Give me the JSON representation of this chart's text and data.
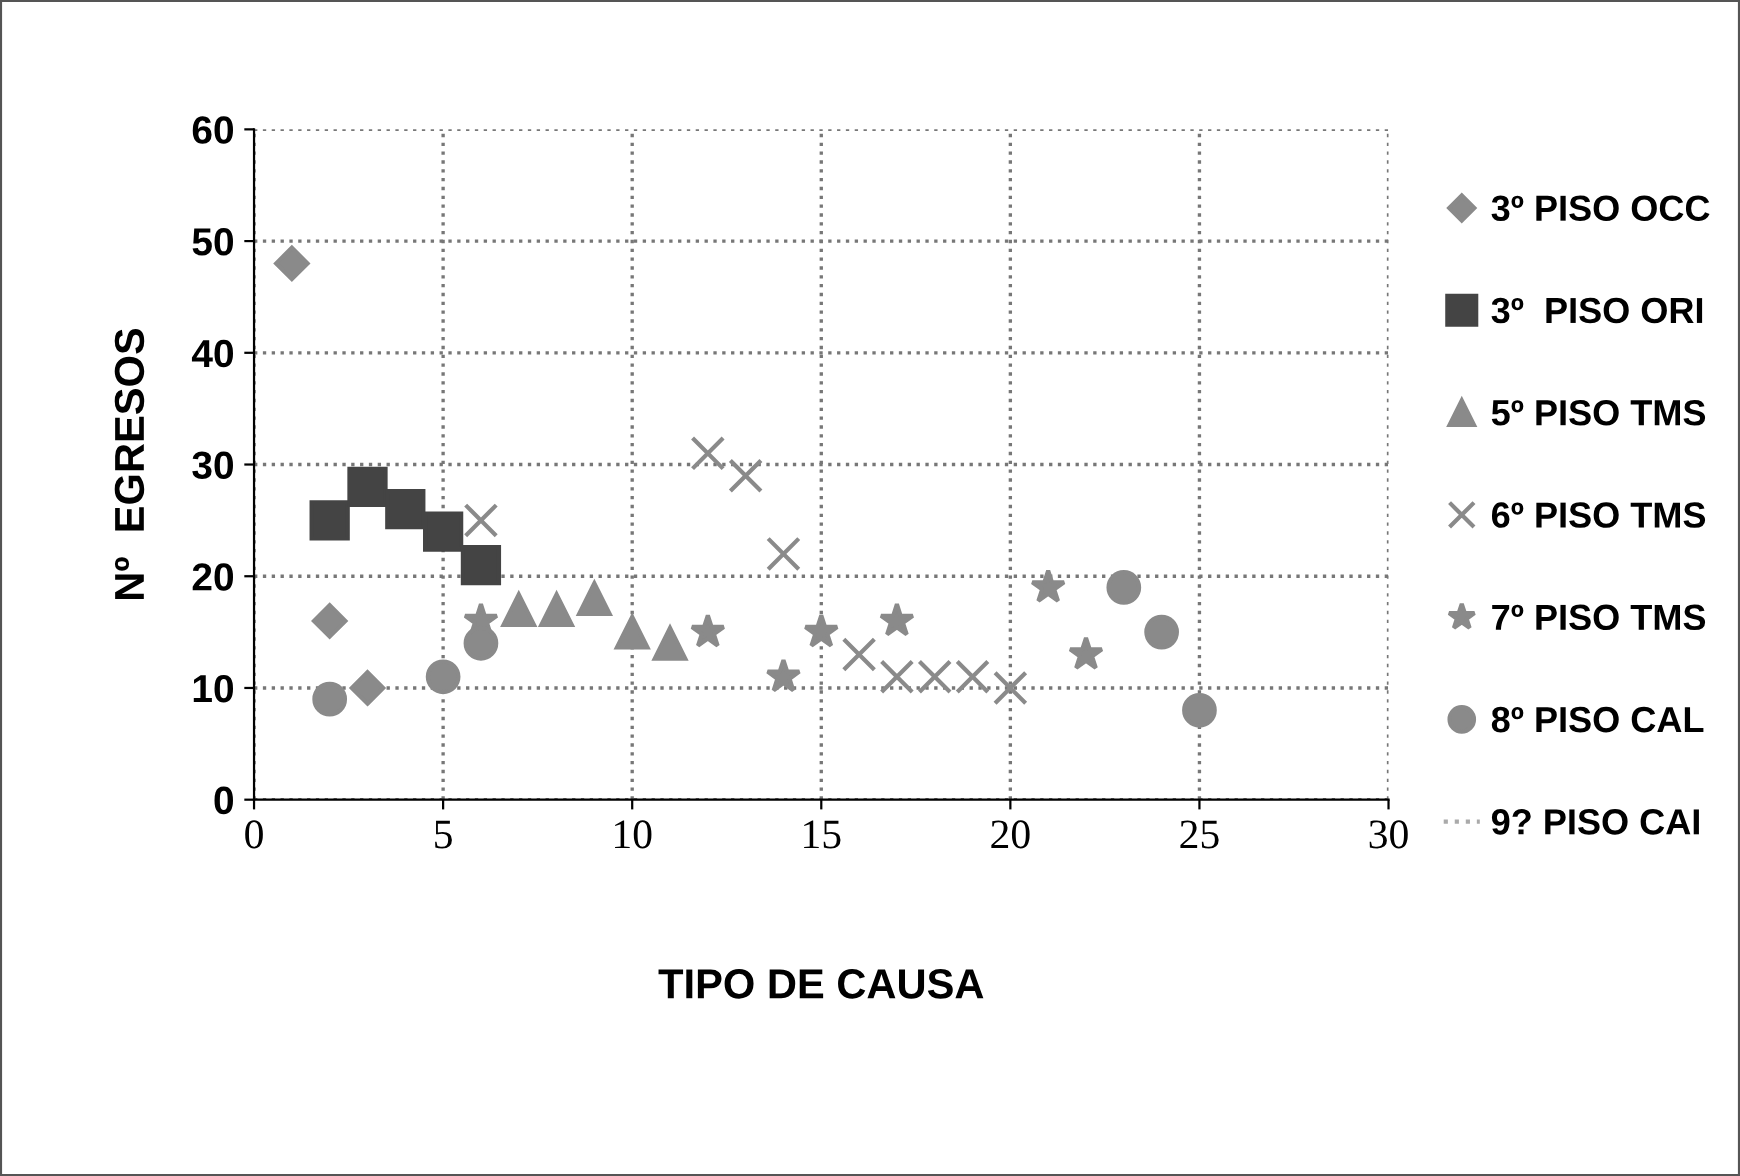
{
  "chart_data": {
    "type": "scatter",
    "xlabel": "TIPO DE CAUSA",
    "ylabel": "Nº  EGRESOS",
    "xlim": [
      0,
      30
    ],
    "xticks": [
      0,
      5,
      10,
      15,
      20,
      25,
      30
    ],
    "ylim": [
      0,
      60
    ],
    "yticks": [
      0,
      10,
      20,
      30,
      40,
      50,
      60
    ],
    "grid": true,
    "legend": "right",
    "series": [
      {
        "name": "3º PISO OCC",
        "color": "#8a8a8a",
        "marker": "diamond",
        "x": [
          1,
          2,
          3
        ],
        "values": [
          48,
          16,
          10
        ]
      },
      {
        "name": "3º  PISO ORI",
        "color": "#444444",
        "marker": "square",
        "x": [
          2,
          3,
          4,
          5,
          6
        ],
        "values": [
          25,
          28,
          26,
          24,
          21
        ]
      },
      {
        "name": "5º PISO TMS",
        "color": "#8a8a8a",
        "marker": "triangle",
        "x": [
          7,
          8,
          9,
          10,
          11
        ],
        "values": [
          17,
          17,
          18,
          15,
          14
        ]
      },
      {
        "name": "6º PISO TMS",
        "color": "#8a8a8a",
        "marker": "cross",
        "x": [
          6,
          12,
          13,
          14,
          16,
          17,
          18,
          19,
          20
        ],
        "values": [
          25,
          31,
          29,
          22,
          13,
          11,
          11,
          11,
          10
        ]
      },
      {
        "name": "7º PISO TMS",
        "color": "#8a8a8a",
        "marker": "star",
        "x": [
          6,
          12,
          14,
          15,
          17,
          21,
          22
        ],
        "values": [
          16,
          15,
          11,
          15,
          16,
          19,
          13
        ]
      },
      {
        "name": "8º PISO CAL",
        "color": "#8a8a8a",
        "marker": "circle",
        "x": [
          2,
          5,
          6,
          23,
          24,
          25
        ],
        "values": [
          9,
          11,
          14,
          19,
          15,
          8
        ]
      },
      {
        "name": "9? PISO CAI",
        "color": "#aaaaaa",
        "marker": "none",
        "line_style": "dotted"
      }
    ]
  }
}
